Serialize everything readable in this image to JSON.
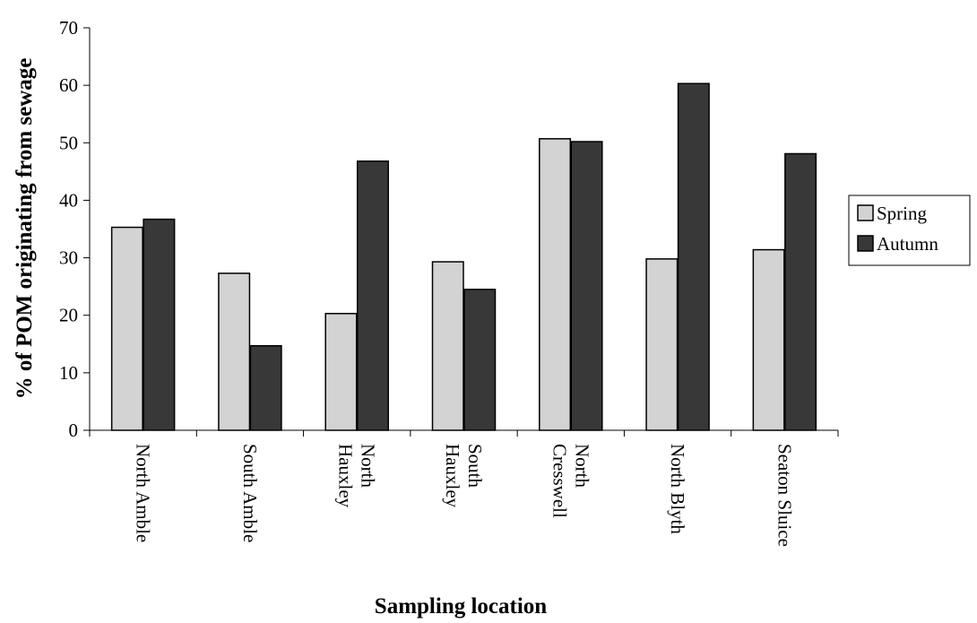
{
  "chart_data": {
    "type": "bar",
    "title": "",
    "xlabel": "Sampling location",
    "ylabel": "% of POM originating from sewage",
    "ylim": [
      0,
      70
    ],
    "yticks": [
      0,
      10,
      20,
      30,
      40,
      50,
      60,
      70
    ],
    "grid": false,
    "legend_position": "right",
    "categories": [
      [
        "North Amble"
      ],
      [
        "South Amble"
      ],
      [
        "North",
        "Hauxley"
      ],
      [
        "South",
        "Hauxley"
      ],
      [
        "North",
        "Cresswell"
      ],
      [
        "North Blyth"
      ],
      [
        "Seaton Sluice"
      ]
    ],
    "series": [
      {
        "name": "Spring",
        "color": "#d3d3d3",
        "values": [
          35.3,
          27.3,
          20.3,
          29.3,
          50.7,
          29.8,
          31.4
        ]
      },
      {
        "name": "Autumn",
        "color": "#383838",
        "values": [
          36.7,
          14.7,
          46.8,
          24.5,
          50.2,
          60.3,
          48.1
        ]
      }
    ]
  }
}
